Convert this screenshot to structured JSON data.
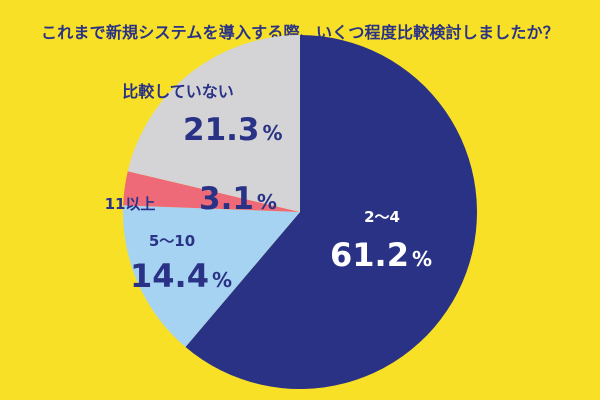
{
  "chart_data": {
    "type": "pie",
    "title": "これまで新規システムを導入する際、いくつ程度比較検討しましたか？",
    "slices": [
      {
        "label": "2〜4",
        "value": 61.2,
        "value_text": "61.2",
        "color": "#2a3286"
      },
      {
        "label": "5〜10",
        "value": 14.4,
        "value_text": "14.4",
        "color": "#a7d3f2"
      },
      {
        "label": "11以上",
        "value": 3.1,
        "value_text": "3.1",
        "color": "#ee6a78"
      },
      {
        "label": "比較していない",
        "value": 21.3,
        "value_text": "21.3",
        "color": "#d4d4d6"
      }
    ],
    "percent_symbol": "%",
    "start": "12 o'clock",
    "direction": "clockwise",
    "background": "#f8e027",
    "label_color_dark": "#2a3286",
    "label_color_light": "#ffffff"
  }
}
